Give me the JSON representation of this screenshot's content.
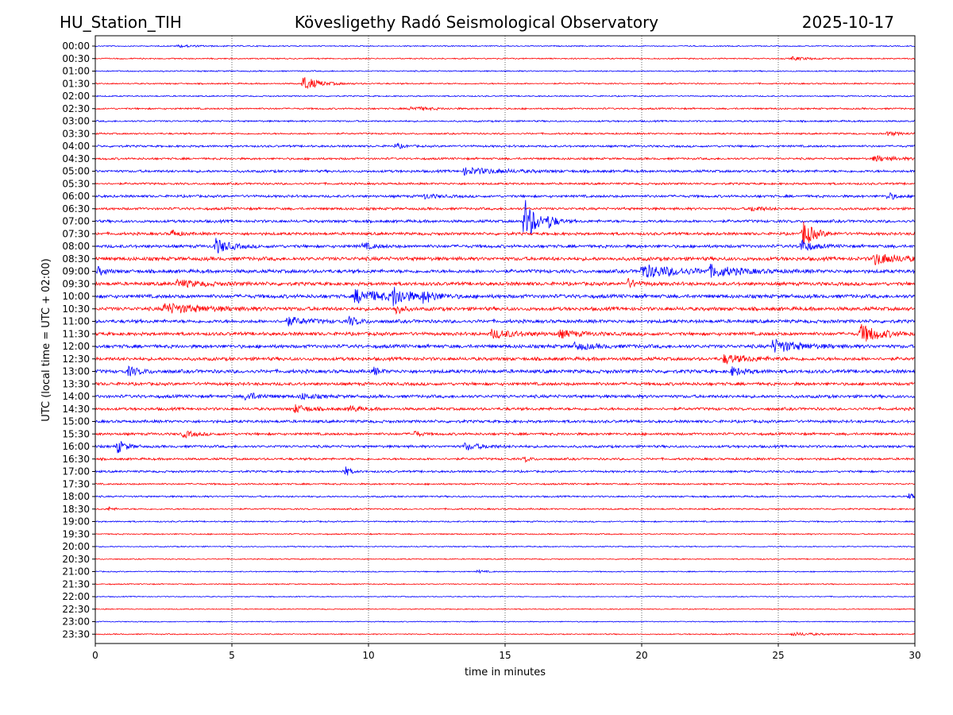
{
  "header": {
    "station": "HU_Station_TIH",
    "observatory": "Kövesligethy Radó Seismological Observatory",
    "date": "2025-10-17"
  },
  "chart_data": {
    "type": "line",
    "title": "Kövesligethy Radó Seismological Observatory",
    "xlabel": "time in minutes",
    "ylabel": "UTC (local time = UTC + 02:00)",
    "xlim": [
      0,
      30
    ],
    "x_ticks": [
      "0",
      "5",
      "10",
      "15",
      "20",
      "25",
      "30"
    ],
    "x_tick_values": [
      0,
      5,
      10,
      15,
      20,
      25,
      30
    ],
    "grid_x": "dotted vertical lines at each x tick",
    "colors": [
      "#0000ff",
      "#ff0000"
    ],
    "row_labels": [
      "00:00",
      "00:30",
      "01:00",
      "01:30",
      "02:00",
      "02:30",
      "03:00",
      "03:30",
      "04:00",
      "04:30",
      "05:00",
      "05:30",
      "06:00",
      "06:30",
      "07:00",
      "07:30",
      "08:00",
      "08:30",
      "09:00",
      "09:30",
      "10:00",
      "10:30",
      "11:00",
      "11:30",
      "12:00",
      "12:30",
      "13:00",
      "13:30",
      "14:00",
      "14:30",
      "15:00",
      "15:30",
      "16:00",
      "16:30",
      "17:00",
      "17:30",
      "18:00",
      "18:30",
      "19:00",
      "19:30",
      "20:00",
      "20:30",
      "21:00",
      "21:30",
      "22:00",
      "22:30",
      "23:00",
      "23:30"
    ],
    "noise_levels": [
      0.8,
      0.9,
      0.9,
      1.0,
      0.9,
      1.2,
      1.2,
      1.2,
      1.5,
      1.5,
      1.8,
      1.5,
      1.8,
      1.8,
      2.0,
      2.0,
      2.2,
      2.6,
      2.5,
      2.5,
      2.6,
      2.6,
      2.4,
      2.4,
      2.5,
      2.4,
      2.5,
      2.2,
      2.2,
      2.0,
      2.0,
      1.8,
      1.8,
      1.6,
      1.5,
      1.2,
      1.2,
      1.1,
      1.0,
      0.9,
      0.8,
      0.8,
      0.8,
      0.8,
      0.7,
      0.7,
      0.7,
      0.8
    ],
    "events": [
      {
        "row": "00:00",
        "t": 3.0,
        "amp": 1.5,
        "dur": 1.5
      },
      {
        "row": "00:30",
        "t": 25.5,
        "amp": 2.0,
        "dur": 1.5
      },
      {
        "row": "01:30",
        "t": 7.6,
        "amp": 9,
        "dur": 1.2
      },
      {
        "row": "02:30",
        "t": 11.5,
        "amp": 2.5,
        "dur": 1.5
      },
      {
        "row": "03:30",
        "t": 29.0,
        "amp": 2.5,
        "dur": 1.0
      },
      {
        "row": "04:00",
        "t": 11.0,
        "amp": 3.5,
        "dur": 0.5
      },
      {
        "row": "04:30",
        "t": 28.5,
        "amp": 3.5,
        "dur": 1.5
      },
      {
        "row": "05:00",
        "t": 13.5,
        "amp": 4.0,
        "dur": 3.0
      },
      {
        "row": "06:00",
        "t": 29.0,
        "amp": 5.0,
        "dur": 0.6
      },
      {
        "row": "06:00",
        "t": 12.0,
        "amp": 3.0,
        "dur": 1.0
      },
      {
        "row": "06:30",
        "t": 24.0,
        "amp": 3.0,
        "dur": 1.0
      },
      {
        "row": "07:00",
        "t": 15.7,
        "amp": 32,
        "dur": 0.8
      },
      {
        "row": "07:00",
        "t": 16.6,
        "amp": 7,
        "dur": 0.5
      },
      {
        "row": "07:30",
        "t": 25.9,
        "amp": 18,
        "dur": 0.8
      },
      {
        "row": "07:30",
        "t": 2.8,
        "amp": 5,
        "dur": 0.5
      },
      {
        "row": "08:00",
        "t": 4.4,
        "amp": 10,
        "dur": 1.0
      },
      {
        "row": "08:00",
        "t": 25.8,
        "amp": 9,
        "dur": 0.8
      },
      {
        "row": "08:00",
        "t": 9.8,
        "amp": 4,
        "dur": 0.8
      },
      {
        "row": "08:30",
        "t": 28.5,
        "amp": 7,
        "dur": 2.0
      },
      {
        "row": "09:00",
        "t": 20.0,
        "amp": 8,
        "dur": 3.0
      },
      {
        "row": "09:00",
        "t": 22.5,
        "amp": 6,
        "dur": 2.0
      },
      {
        "row": "09:00",
        "t": 0.1,
        "amp": 5,
        "dur": 0.5
      },
      {
        "row": "09:30",
        "t": 19.5,
        "amp": 5,
        "dur": 0.8
      },
      {
        "row": "09:30",
        "t": 3.0,
        "amp": 4,
        "dur": 2.0
      },
      {
        "row": "10:00",
        "t": 9.5,
        "amp": 8,
        "dur": 2.5
      },
      {
        "row": "10:00",
        "t": 10.9,
        "amp": 11,
        "dur": 1.0
      },
      {
        "row": "10:00",
        "t": 12.0,
        "amp": 6,
        "dur": 1.0
      },
      {
        "row": "10:30",
        "t": 2.5,
        "amp": 6,
        "dur": 3.0
      },
      {
        "row": "10:30",
        "t": 11.0,
        "amp": 9,
        "dur": 0.4
      },
      {
        "row": "11:00",
        "t": 7.0,
        "amp": 5,
        "dur": 1.5
      },
      {
        "row": "11:00",
        "t": 9.3,
        "amp": 5,
        "dur": 0.8
      },
      {
        "row": "11:30",
        "t": 28.0,
        "amp": 12,
        "dur": 1.5
      },
      {
        "row": "11:30",
        "t": 14.5,
        "amp": 5,
        "dur": 2.0
      },
      {
        "row": "11:30",
        "t": 17.0,
        "amp": 4,
        "dur": 1.5
      },
      {
        "row": "12:00",
        "t": 24.8,
        "amp": 8,
        "dur": 2.0
      },
      {
        "row": "12:00",
        "t": 17.5,
        "amp": 4,
        "dur": 1.5
      },
      {
        "row": "12:30",
        "t": 23.0,
        "amp": 5,
        "dur": 2.0
      },
      {
        "row": "13:00",
        "t": 1.2,
        "amp": 5,
        "dur": 1.0
      },
      {
        "row": "13:00",
        "t": 23.3,
        "amp": 5,
        "dur": 1.0
      },
      {
        "row": "13:00",
        "t": 10.2,
        "amp": 5,
        "dur": 0.4
      },
      {
        "row": "14:00",
        "t": 5.5,
        "amp": 5,
        "dur": 1.0
      },
      {
        "row": "14:00",
        "t": 7.5,
        "amp": 4,
        "dur": 1.0
      },
      {
        "row": "14:30",
        "t": 7.3,
        "amp": 5,
        "dur": 1.0
      },
      {
        "row": "14:30",
        "t": 9.3,
        "amp": 4,
        "dur": 0.8
      },
      {
        "row": "15:30",
        "t": 3.2,
        "amp": 4,
        "dur": 1.0
      },
      {
        "row": "15:30",
        "t": 11.7,
        "amp": 4,
        "dur": 0.4
      },
      {
        "row": "16:00",
        "t": 0.8,
        "amp": 9,
        "dur": 0.6
      },
      {
        "row": "16:00",
        "t": 13.5,
        "amp": 4,
        "dur": 1.5
      },
      {
        "row": "16:30",
        "t": 15.7,
        "amp": 4,
        "dur": 0.4
      },
      {
        "row": "17:00",
        "t": 9.1,
        "amp": 8,
        "dur": 0.4
      },
      {
        "row": "18:00",
        "t": 29.8,
        "amp": 4,
        "dur": 0.4
      },
      {
        "row": "18:30",
        "t": 0.5,
        "amp": 3,
        "dur": 0.3
      },
      {
        "row": "21:00",
        "t": 14.0,
        "amp": 2,
        "dur": 0.5
      },
      {
        "row": "23:30",
        "t": 25.5,
        "amp": 2,
        "dur": 2.0
      }
    ]
  }
}
